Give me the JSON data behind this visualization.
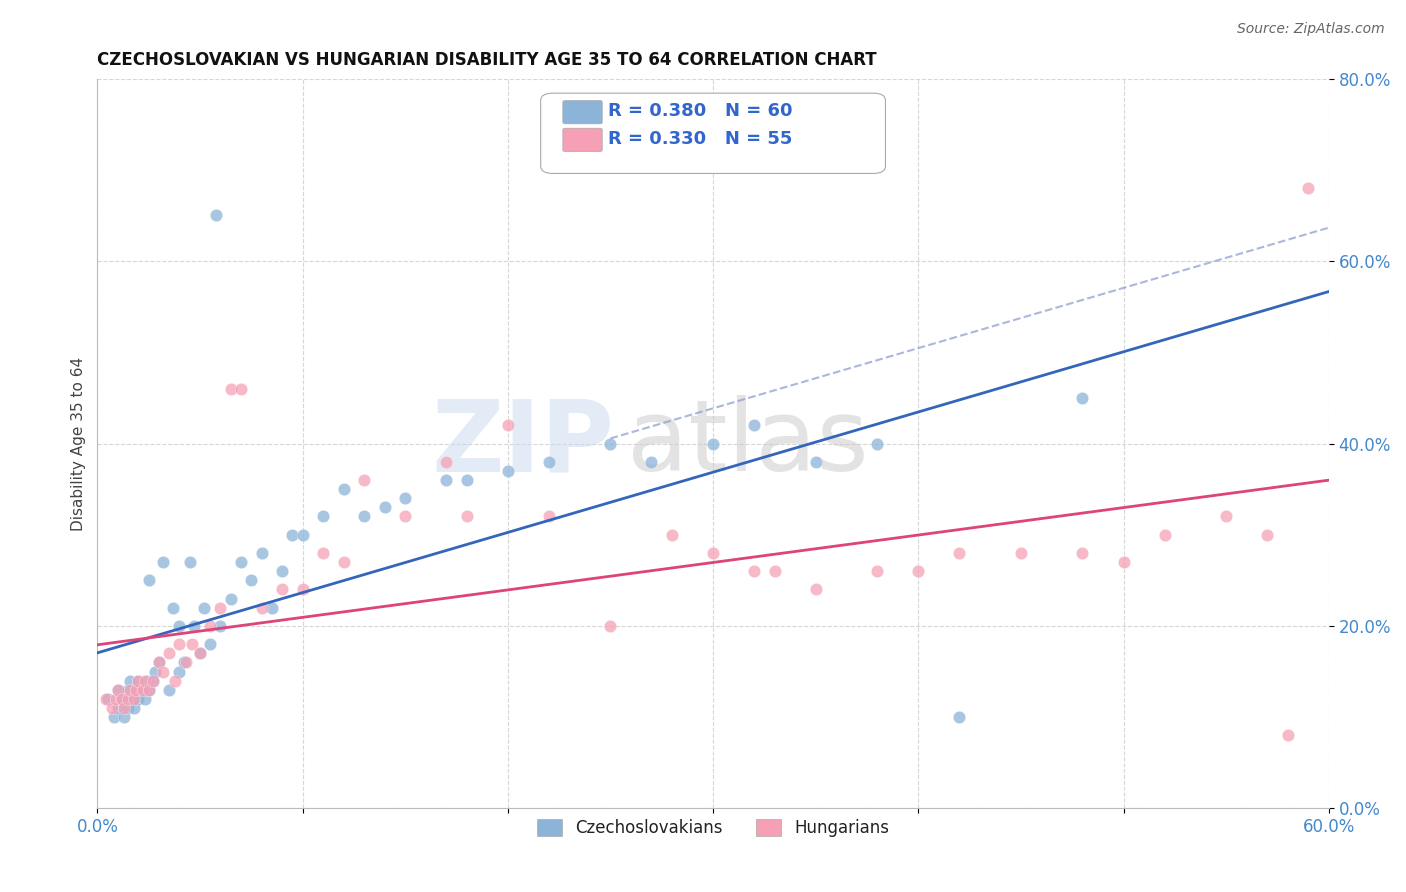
{
  "title": "CZECHOSLOVAKIAN VS HUNGARIAN DISABILITY AGE 35 TO 64 CORRELATION CHART",
  "source": "Source: ZipAtlas.com",
  "ylabel": "Disability Age 35 to 64",
  "legend_r_blue": "R = 0.380",
  "legend_n_blue": "N = 60",
  "legend_r_pink": "R = 0.330",
  "legend_n_pink": "N = 55",
  "legend_label_blue": "Czechoslovakians",
  "legend_label_pink": "Hungarians",
  "xlim": [
    0.0,
    0.6
  ],
  "ylim": [
    0.0,
    0.8
  ],
  "xtick_show": [
    0.0,
    0.6
  ],
  "xtick_labels_show": [
    "0.0%",
    "60.0%"
  ],
  "yticks": [
    0.0,
    0.2,
    0.4,
    0.6,
    0.8
  ],
  "ytick_labels": [
    "0.0%",
    "20.0%",
    "40.0%",
    "60.0%",
    "80.0%"
  ],
  "blue_color": "#8BB4D8",
  "pink_color": "#F5A0B5",
  "regression_blue_color": "#3366BB",
  "regression_pink_color": "#DD4477",
  "dashed_color": "#8899CC",
  "background_color": "#FFFFFF",
  "grid_color": "#CCCCCC",
  "watermark_zip": "ZIP",
  "watermark_atlas": "atlas",
  "blue_scatter_x": [
    0.005,
    0.008,
    0.01,
    0.01,
    0.012,
    0.013,
    0.015,
    0.015,
    0.016,
    0.017,
    0.018,
    0.019,
    0.02,
    0.02,
    0.022,
    0.023,
    0.024,
    0.025,
    0.025,
    0.027,
    0.028,
    0.03,
    0.032,
    0.035,
    0.037,
    0.04,
    0.04,
    0.042,
    0.045,
    0.047,
    0.05,
    0.052,
    0.055,
    0.058,
    0.06,
    0.065,
    0.07,
    0.075,
    0.08,
    0.085,
    0.09,
    0.095,
    0.1,
    0.11,
    0.12,
    0.13,
    0.14,
    0.15,
    0.17,
    0.18,
    0.2,
    0.22,
    0.25,
    0.27,
    0.3,
    0.32,
    0.35,
    0.38,
    0.42,
    0.48
  ],
  "blue_scatter_y": [
    0.12,
    0.1,
    0.11,
    0.13,
    0.12,
    0.1,
    0.11,
    0.13,
    0.14,
    0.12,
    0.11,
    0.13,
    0.12,
    0.14,
    0.13,
    0.12,
    0.14,
    0.13,
    0.25,
    0.14,
    0.15,
    0.16,
    0.27,
    0.13,
    0.22,
    0.15,
    0.2,
    0.16,
    0.27,
    0.2,
    0.17,
    0.22,
    0.18,
    0.65,
    0.2,
    0.23,
    0.27,
    0.25,
    0.28,
    0.22,
    0.26,
    0.3,
    0.3,
    0.32,
    0.35,
    0.32,
    0.33,
    0.34,
    0.36,
    0.36,
    0.37,
    0.38,
    0.4,
    0.38,
    0.4,
    0.42,
    0.38,
    0.4,
    0.1,
    0.45
  ],
  "pink_scatter_x": [
    0.004,
    0.007,
    0.009,
    0.01,
    0.012,
    0.013,
    0.015,
    0.016,
    0.018,
    0.019,
    0.02,
    0.022,
    0.023,
    0.025,
    0.027,
    0.03,
    0.032,
    0.035,
    0.038,
    0.04,
    0.043,
    0.046,
    0.05,
    0.055,
    0.06,
    0.065,
    0.07,
    0.08,
    0.09,
    0.1,
    0.11,
    0.12,
    0.13,
    0.15,
    0.17,
    0.18,
    0.2,
    0.22,
    0.25,
    0.28,
    0.3,
    0.32,
    0.33,
    0.35,
    0.38,
    0.4,
    0.42,
    0.45,
    0.48,
    0.5,
    0.52,
    0.55,
    0.57,
    0.58,
    0.59
  ],
  "pink_scatter_y": [
    0.12,
    0.11,
    0.12,
    0.13,
    0.12,
    0.11,
    0.12,
    0.13,
    0.12,
    0.13,
    0.14,
    0.13,
    0.14,
    0.13,
    0.14,
    0.16,
    0.15,
    0.17,
    0.14,
    0.18,
    0.16,
    0.18,
    0.17,
    0.2,
    0.22,
    0.46,
    0.46,
    0.22,
    0.24,
    0.24,
    0.28,
    0.27,
    0.36,
    0.32,
    0.38,
    0.32,
    0.42,
    0.32,
    0.2,
    0.3,
    0.28,
    0.26,
    0.26,
    0.24,
    0.26,
    0.26,
    0.28,
    0.28,
    0.28,
    0.27,
    0.3,
    0.32,
    0.3,
    0.08,
    0.68
  ]
}
